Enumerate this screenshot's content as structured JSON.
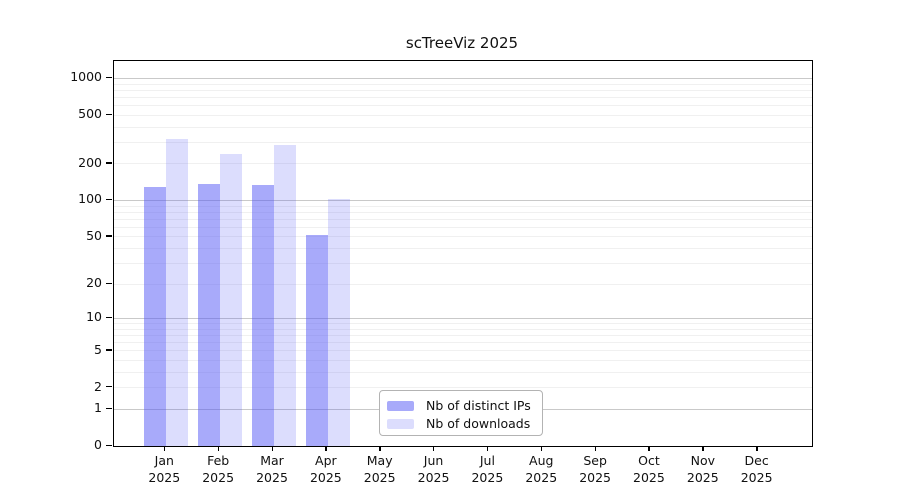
{
  "chart_data": {
    "type": "bar",
    "title": "scTreeViz 2025",
    "categories": [
      "Jan 2025",
      "Feb 2025",
      "Mar 2025",
      "Apr 2025",
      "May 2025",
      "Jun 2025",
      "Jul 2025",
      "Aug 2025",
      "Sep 2025",
      "Oct 2025",
      "Nov 2025",
      "Dec 2025"
    ],
    "series": [
      {
        "name": "Nb of distinct IPs",
        "color": "rgba(81,85,245,0.50)",
        "values": [
          130,
          136,
          133,
          52,
          null,
          null,
          null,
          null,
          null,
          null,
          null,
          null
        ]
      },
      {
        "name": "Nb of downloads",
        "color": "rgba(81,85,245,0.20)",
        "values": [
          320,
          240,
          287,
          103,
          null,
          null,
          null,
          null,
          null,
          null,
          null,
          null
        ]
      }
    ],
    "xlabel": "",
    "ylabel": "",
    "yscale": "symlog (log10 of 1+x)",
    "yticks": [
      0,
      1,
      2,
      5,
      10,
      20,
      50,
      100,
      200,
      500,
      1000
    ],
    "ylim": [
      0,
      1390
    ],
    "grid": "horizontal major and minor gridlines",
    "legend_position": "inside, lower middle",
    "bar_colors_hex_on_white": {
      "Nb of distinct IPs": "#a8aafa",
      "Nb of downloads": "#dcddfd"
    }
  }
}
